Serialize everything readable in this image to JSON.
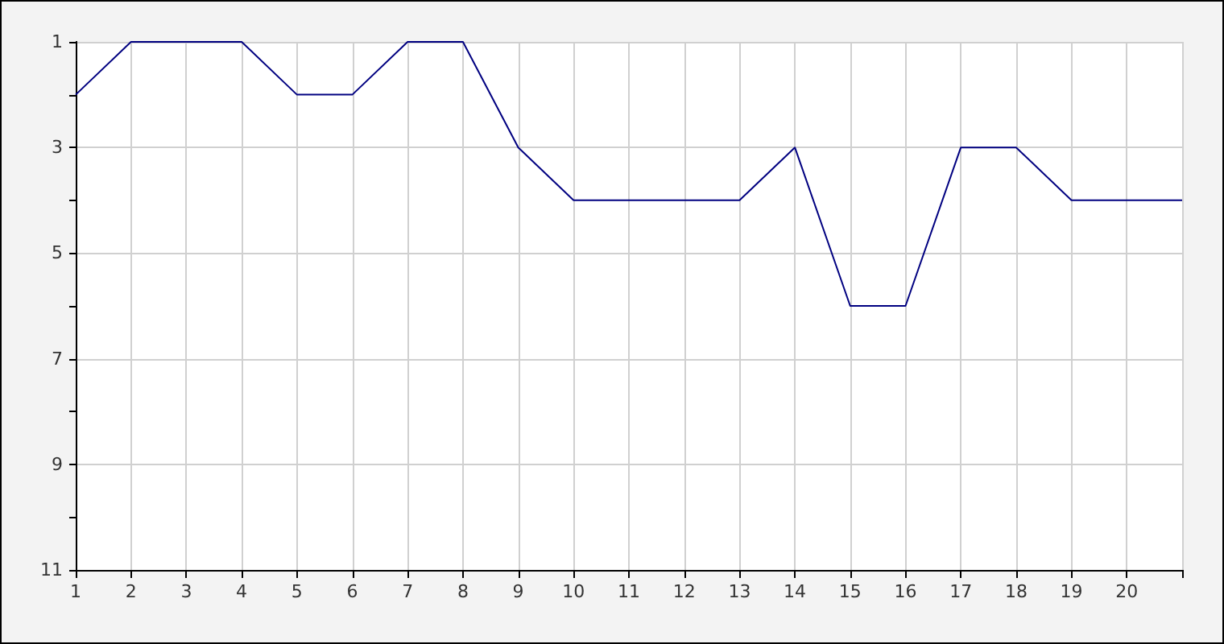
{
  "chart_data": {
    "type": "line",
    "x": [
      1,
      2,
      3,
      4,
      5,
      6,
      7,
      8,
      9,
      10,
      11,
      12,
      13,
      14,
      15,
      16,
      17,
      18,
      19,
      20,
      21
    ],
    "series": [
      {
        "color": "#000080",
        "values": [
          2,
          1,
          1,
          1,
          2,
          2,
          1,
          1,
          3,
          4,
          4,
          4,
          4,
          3,
          6,
          6,
          3,
          3,
          4,
          4,
          4
        ]
      }
    ],
    "xlim": [
      1,
      21
    ],
    "xticks": [
      1,
      2,
      3,
      4,
      5,
      6,
      7,
      8,
      9,
      10,
      11,
      12,
      13,
      14,
      15,
      16,
      17,
      18,
      19,
      20,
      {
        "value": 21,
        "label": null
      }
    ],
    "ylim": [
      11,
      1
    ],
    "yticks": [
      1,
      {
        "value": 2,
        "label": null
      },
      3,
      {
        "value": 4,
        "label": null
      },
      5,
      {
        "value": 6,
        "label": null
      },
      7,
      {
        "value": 8,
        "label": null
      },
      9,
      {
        "value": 10,
        "label": null
      },
      11
    ],
    "grid": true,
    "marker": "none",
    "line_style": "solid"
  }
}
